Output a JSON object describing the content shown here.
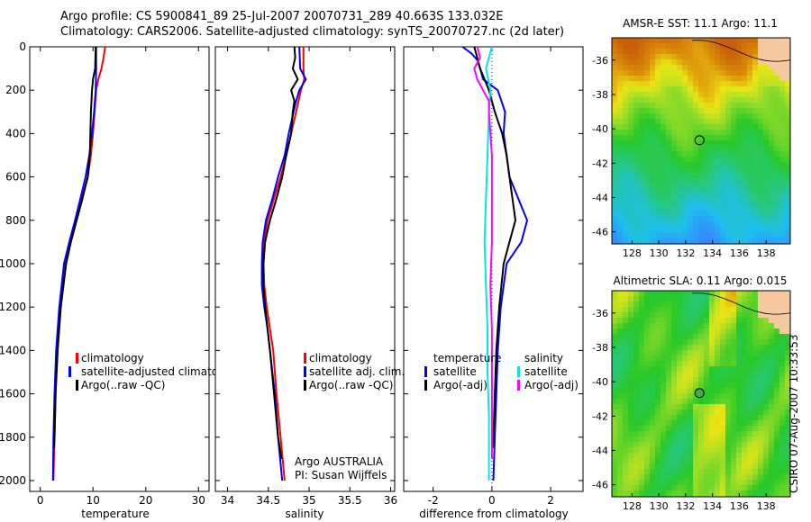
{
  "header": {
    "line1": "Argo profile: CS 5900841_89 25-Jul-2007 20070731_289 40.663S 133.032E",
    "line2": "Climatology: CARS2006. Satellite-adjusted climatology: synTS_20070727.nc (2d later)"
  },
  "credit": "CSIRO 07-Aug-2007 10:33:53",
  "colors": {
    "clim": "#ff0000",
    "sat": "#0000ff",
    "argo": "#000000",
    "sat_sal": "#00e5ee",
    "argo_sal": "#ff00ff"
  },
  "chart_data": [
    {
      "type": "line",
      "id": "temperature",
      "xlabel": "temperature",
      "ylabel": "",
      "xlim": [
        -2,
        32
      ],
      "ylim": [
        2050,
        0
      ],
      "xticks": [
        0,
        10,
        20,
        30
      ],
      "yticks": [
        0,
        200,
        400,
        600,
        800,
        1000,
        1200,
        1400,
        1600,
        1800,
        2000
      ],
      "legend": [
        "climatology",
        "satellite-adjusted climatology",
        "Argo(..raw -QC)"
      ],
      "series": [
        {
          "name": "climatology",
          "color": "#ff0000",
          "points": [
            [
              12.3,
              0
            ],
            [
              12.0,
              50
            ],
            [
              11.6,
              100
            ],
            [
              11.0,
              150
            ],
            [
              10.6,
              200
            ],
            [
              10.3,
              300
            ],
            [
              10.0,
              400
            ],
            [
              9.6,
              500
            ],
            [
              9.0,
              600
            ],
            [
              7.9,
              700
            ],
            [
              6.8,
              800
            ],
            [
              5.6,
              900
            ],
            [
              4.6,
              1000
            ],
            [
              3.8,
              1200
            ],
            [
              3.2,
              1400
            ],
            [
              2.9,
              1600
            ],
            [
              2.7,
              1800
            ],
            [
              2.5,
              2000
            ]
          ]
        },
        {
          "name": "satellite-adjusted climatology",
          "color": "#0000ff",
          "points": [
            [
              10.6,
              0
            ],
            [
              10.6,
              100
            ],
            [
              10.5,
              200
            ],
            [
              10.2,
              300
            ],
            [
              9.8,
              400
            ],
            [
              9.3,
              500
            ],
            [
              8.6,
              600
            ],
            [
              7.6,
              700
            ],
            [
              6.6,
              800
            ],
            [
              5.5,
              900
            ],
            [
              4.5,
              1000
            ],
            [
              3.6,
              1200
            ],
            [
              3.0,
              1400
            ],
            [
              2.7,
              1600
            ],
            [
              2.5,
              1800
            ],
            [
              2.4,
              2000
            ]
          ]
        },
        {
          "name": "Argo(..raw -QC)",
          "color": "#000000",
          "points": [
            [
              10.5,
              0
            ],
            [
              10.4,
              100
            ],
            [
              10.0,
              150
            ],
            [
              9.8,
              200
            ],
            [
              9.6,
              300
            ],
            [
              9.5,
              400
            ],
            [
              9.4,
              500
            ],
            [
              9.0,
              600
            ],
            [
              8.0,
              700
            ],
            [
              6.9,
              800
            ],
            [
              5.8,
              900
            ],
            [
              4.9,
              1000
            ],
            [
              3.9,
              1200
            ],
            [
              3.3,
              1400
            ],
            [
              2.9,
              1600
            ],
            [
              2.7,
              1800
            ],
            [
              2.6,
              1850
            ]
          ]
        }
      ]
    },
    {
      "type": "line",
      "id": "salinity",
      "xlabel": "salinity",
      "xlim": [
        33.85,
        36.05
      ],
      "ylim": [
        2050,
        0
      ],
      "xticks": [
        34,
        34.5,
        35,
        35.5,
        36
      ],
      "yticks": [
        0,
        200,
        400,
        600,
        800,
        1000,
        1200,
        1400,
        1600,
        1800,
        2000
      ],
      "legend": [
        "climatology",
        "satellite adj. clim.",
        "Argo(..raw -QC)"
      ],
      "annotation": [
        "Argo AUSTRALIA",
        "PI: Susan Wijffels"
      ],
      "series": [
        {
          "name": "climatology",
          "color": "#ff0000",
          "points": [
            [
              34.93,
              0
            ],
            [
              34.93,
              100
            ],
            [
              34.94,
              150
            ],
            [
              34.9,
              200
            ],
            [
              34.87,
              250
            ],
            [
              34.84,
              300
            ],
            [
              34.78,
              400
            ],
            [
              34.72,
              500
            ],
            [
              34.65,
              600
            ],
            [
              34.57,
              700
            ],
            [
              34.49,
              800
            ],
            [
              34.45,
              900
            ],
            [
              34.44,
              1000
            ],
            [
              34.45,
              1100
            ],
            [
              34.48,
              1200
            ],
            [
              34.52,
              1300
            ],
            [
              34.56,
              1400
            ],
            [
              34.6,
              1600
            ],
            [
              34.65,
              1800
            ],
            [
              34.7,
              2000
            ]
          ]
        },
        {
          "name": "satellite adj. clim.",
          "color": "#0000ff",
          "points": [
            [
              34.88,
              0
            ],
            [
              34.89,
              100
            ],
            [
              34.96,
              150
            ],
            [
              34.88,
              200
            ],
            [
              34.84,
              250
            ],
            [
              34.81,
              300
            ],
            [
              34.75,
              400
            ],
            [
              34.7,
              500
            ],
            [
              34.62,
              600
            ],
            [
              34.55,
              700
            ],
            [
              34.47,
              800
            ],
            [
              34.43,
              900
            ],
            [
              34.42,
              1000
            ],
            [
              34.42,
              1100
            ],
            [
              34.45,
              1200
            ],
            [
              34.49,
              1300
            ],
            [
              34.52,
              1400
            ],
            [
              34.58,
              1600
            ],
            [
              34.62,
              1800
            ],
            [
              34.67,
              2000
            ]
          ]
        },
        {
          "name": "Argo(..raw -QC)",
          "color": "#000000",
          "points": [
            [
              34.82,
              0
            ],
            [
              34.83,
              50
            ],
            [
              34.8,
              100
            ],
            [
              34.86,
              150
            ],
            [
              34.78,
              200
            ],
            [
              34.82,
              250
            ],
            [
              34.8,
              300
            ],
            [
              34.78,
              400
            ],
            [
              34.72,
              500
            ],
            [
              34.67,
              600
            ],
            [
              34.6,
              700
            ],
            [
              34.52,
              800
            ],
            [
              34.46,
              900
            ],
            [
              34.44,
              1000
            ],
            [
              34.44,
              1100
            ],
            [
              34.46,
              1200
            ],
            [
              34.49,
              1300
            ],
            [
              34.52,
              1400
            ],
            [
              34.57,
              1600
            ],
            [
              34.62,
              1800
            ],
            [
              34.66,
              1900
            ]
          ]
        }
      ]
    },
    {
      "type": "line",
      "id": "difference",
      "xlabel": "difference from climatology",
      "xlim": [
        -3,
        3.1
      ],
      "ylim": [
        2050,
        0
      ],
      "xticks": [
        -2,
        0,
        2
      ],
      "yticks": [
        0,
        200,
        400,
        600,
        800,
        1000,
        1200,
        1400,
        1600,
        1800,
        2000
      ],
      "legend_left_title": "temperature",
      "legend_right_title": "salinity",
      "legend": [
        "satellite",
        "Argo(-adj)",
        "satellite",
        "Argo(-adj)"
      ],
      "series": [
        {
          "name": "temperature satellite",
          "color": "#0000ff",
          "points": [
            [
              -1.0,
              0
            ],
            [
              -0.7,
              30
            ],
            [
              -0.5,
              60
            ],
            [
              -0.4,
              100
            ],
            [
              -0.3,
              150
            ],
            [
              0.2,
              200
            ],
            [
              0.45,
              300
            ],
            [
              0.4,
              400
            ],
            [
              0.5,
              500
            ],
            [
              0.6,
              600
            ],
            [
              0.9,
              700
            ],
            [
              1.2,
              800
            ],
            [
              1.0,
              900
            ],
            [
              0.5,
              1000
            ],
            [
              0.3,
              1200
            ],
            [
              0.2,
              1400
            ],
            [
              0.15,
              1600
            ],
            [
              0.1,
              1800
            ],
            [
              0.05,
              2000
            ]
          ]
        },
        {
          "name": "temperature Argo(-adj)",
          "color": "#000000",
          "points": [
            [
              -0.6,
              0
            ],
            [
              -0.5,
              50
            ],
            [
              -0.4,
              100
            ],
            [
              -0.1,
              200
            ],
            [
              0.1,
              300
            ],
            [
              0.35,
              400
            ],
            [
              0.5,
              500
            ],
            [
              0.6,
              600
            ],
            [
              0.7,
              700
            ],
            [
              0.8,
              800
            ],
            [
              0.6,
              900
            ],
            [
              0.4,
              1000
            ],
            [
              0.25,
              1200
            ],
            [
              0.15,
              1400
            ],
            [
              0.1,
              1600
            ],
            [
              0.05,
              1800
            ],
            [
              0.05,
              1850
            ]
          ]
        },
        {
          "name": "salinity satellite",
          "color": "#00e5ee",
          "points": [
            [
              0.0,
              0
            ],
            [
              -0.1,
              50
            ],
            [
              -0.2,
              100
            ],
            [
              -0.05,
              200
            ],
            [
              -0.1,
              300
            ],
            [
              -0.15,
              500
            ],
            [
              -0.2,
              700
            ],
            [
              -0.25,
              900
            ],
            [
              -0.2,
              1100
            ],
            [
              -0.15,
              1300
            ],
            [
              -0.15,
              1500
            ],
            [
              -0.1,
              1700
            ],
            [
              -0.1,
              2000
            ]
          ]
        },
        {
          "name": "salinity Argo(-adj)",
          "color": "#ff00ff",
          "points": [
            [
              -0.5,
              0
            ],
            [
              -0.4,
              50
            ],
            [
              -0.6,
              100
            ],
            [
              -0.5,
              150
            ],
            [
              -0.3,
              200
            ],
            [
              -0.1,
              250
            ],
            [
              -0.1,
              300
            ],
            [
              0.0,
              500
            ],
            [
              0.0,
              700
            ],
            [
              0.0,
              900
            ],
            [
              -0.05,
              1100
            ],
            [
              0.0,
              1300
            ],
            [
              0.0,
              1500
            ],
            [
              0.0,
              1700
            ],
            [
              0.0,
              1900
            ]
          ]
        }
      ]
    },
    {
      "type": "heatmap",
      "id": "sst-map",
      "title": "AMSR-E SST: 11.1  Argo: 11.1",
      "xlim": [
        126.5,
        139.8
      ],
      "ylim": [
        -46.7,
        -34.7
      ],
      "xticks": [
        128,
        130,
        132,
        134,
        136,
        138
      ],
      "yticks": [
        -36,
        -38,
        -40,
        -42,
        -44,
        -46
      ],
      "marker": {
        "lon": 133.032,
        "lat": -40.663,
        "fill": "none"
      }
    },
    {
      "type": "heatmap",
      "id": "sla-map",
      "title": "Altimetric SLA: 0.11  Argo: 0.015",
      "xlim": [
        126.5,
        139.8
      ],
      "ylim": [
        -46.7,
        -34.7
      ],
      "xticks": [
        128,
        130,
        132,
        134,
        136,
        138
      ],
      "yticks": [
        -36,
        -38,
        -40,
        -42,
        -44,
        -46
      ],
      "marker": {
        "lon": 133.032,
        "lat": -40.663,
        "fill": "#44aa55"
      }
    }
  ]
}
